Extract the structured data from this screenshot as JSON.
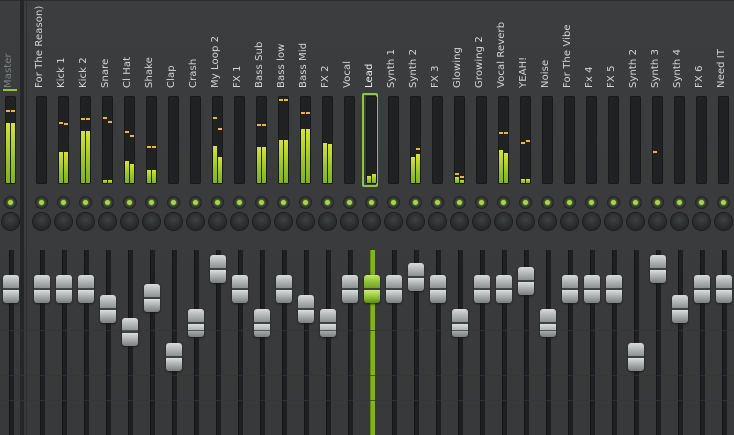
{
  "mixer": {
    "master": {
      "name": "Master",
      "meter": {
        "left": 0.7,
        "right": 0.7,
        "peak_left": 0.84,
        "peak_right": 0.84
      },
      "fader_db": 0
    },
    "channels": [
      {
        "name": "For The Reason)",
        "meter": null,
        "fader": 0.0
      },
      {
        "name": "Kick 1",
        "meter": {
          "left": 0.36,
          "right": 0.36,
          "peak_left": 0.7,
          "peak_right": 0.69
        },
        "fader": 0.0
      },
      {
        "name": "Kick 2",
        "meter": {
          "left": 0.6,
          "right": 0.6,
          "peak_left": 0.74,
          "peak_right": 0.74
        },
        "fader": 0.0
      },
      {
        "name": "Snare",
        "meter": {
          "left": 0.04,
          "right": 0.04,
          "peak_left": 0.75,
          "peak_right": 0.71
        },
        "fader": -0.12
      },
      {
        "name": "Cl Hat",
        "meter": {
          "left": 0.25,
          "right": 0.22,
          "peak_left": 0.59,
          "peak_right": 0.55
        },
        "fader": -0.25
      },
      {
        "name": "Shake",
        "meter": {
          "left": 0.15,
          "right": 0.15,
          "peak_left": 0.42,
          "peak_right": 0.42
        },
        "fader": -0.05
      },
      {
        "name": "Clap",
        "meter": null,
        "fader": -0.4
      },
      {
        "name": "Crash",
        "meter": {
          "left": 0.0,
          "right": 0.0,
          "peak_left": 0.03,
          "peak_right": 0.03
        },
        "fader": -0.2
      },
      {
        "name": "My Loop 2",
        "meter": {
          "left": 0.43,
          "right": 0.3,
          "peak_left": 0.75,
          "peak_right": 0.63
        },
        "fader": 0.12
      },
      {
        "name": "FX 1",
        "meter": null,
        "fader": 0.0
      },
      {
        "name": "Bass Sub",
        "meter": {
          "left": 0.42,
          "right": 0.42,
          "peak_left": 0.68,
          "peak_right": 0.68
        },
        "fader": -0.2
      },
      {
        "name": "Bass low",
        "meter": {
          "left": 0.5,
          "right": 0.5,
          "peak_left": 0.96,
          "peak_right": 0.96
        },
        "fader": 0.0
      },
      {
        "name": "Bass Mid",
        "meter": {
          "left": 0.63,
          "right": 0.63,
          "peak_left": 0.81,
          "peak_right": 0.81
        },
        "fader": -0.12
      },
      {
        "name": "FX 2",
        "meter": {
          "left": 0.46,
          "right": 0.45,
          "peak_left": 0.46,
          "peak_right": 0.45
        },
        "fader": -0.2
      },
      {
        "name": "Vocal",
        "meter": null,
        "fader": 0.0
      },
      {
        "name": "Lead",
        "meter": {
          "left": 0.08,
          "right": 0.1,
          "peak_left": 0.08,
          "peak_right": 0.1
        },
        "fader": 0.0,
        "selected": true
      },
      {
        "name": "Synth 1",
        "meter": null,
        "fader": 0.0
      },
      {
        "name": "Synth 2",
        "meter": {
          "left": 0.3,
          "right": 0.34,
          "peak_left": 0.3,
          "peak_right": 0.4
        },
        "fader": 0.07
      },
      {
        "name": "FX 3",
        "meter": null,
        "fader": 0.0
      },
      {
        "name": "Glowing",
        "meter": {
          "left": 0.07,
          "right": 0.04,
          "peak_left": 0.11,
          "peak_right": 0.07
        },
        "fader": -0.2
      },
      {
        "name": "Growing 2",
        "meter": null,
        "fader": 0.0
      },
      {
        "name": "Vocal Reverb",
        "meter": {
          "left": 0.38,
          "right": 0.35,
          "peak_left": 0.58,
          "peak_right": 0.58
        },
        "fader": 0.0
      },
      {
        "name": "YEAH!",
        "meter": {
          "left": 0.05,
          "right": 0.05,
          "peak_left": 0.47,
          "peak_right": 0.49
        },
        "fader": 0.05
      },
      {
        "name": "Noise",
        "meter": null,
        "fader": -0.2
      },
      {
        "name": "For The Vibe",
        "meter": null,
        "fader": 0.0
      },
      {
        "name": "Fx 4",
        "meter": null,
        "fader": 0.0
      },
      {
        "name": "FX 5",
        "meter": null,
        "fader": 0.0
      },
      {
        "name": "Synth 2",
        "meter": null,
        "fader": -0.4
      },
      {
        "name": "Synth 3",
        "meter": {
          "left": 0.0,
          "right": 0.0,
          "peak_left": 0.36,
          "peak_right": 0.0
        },
        "fader": 0.12
      },
      {
        "name": "Synth 4",
        "meter": null,
        "fader": -0.12
      },
      {
        "name": "FX 6",
        "meter": null,
        "fader": 0.0
      },
      {
        "name": "Need IT",
        "meter": null,
        "fader": 0.0
      }
    ]
  },
  "colors": {
    "accent": "#8dc63f",
    "meter_bar": "#a6cc2c",
    "meter_peak": "#f0b33c",
    "background": "#3a3c3d"
  },
  "icons": {
    "led": "led-indicator-icon",
    "knob": "pan-knob-icon",
    "fader": "volume-fader-icon"
  }
}
